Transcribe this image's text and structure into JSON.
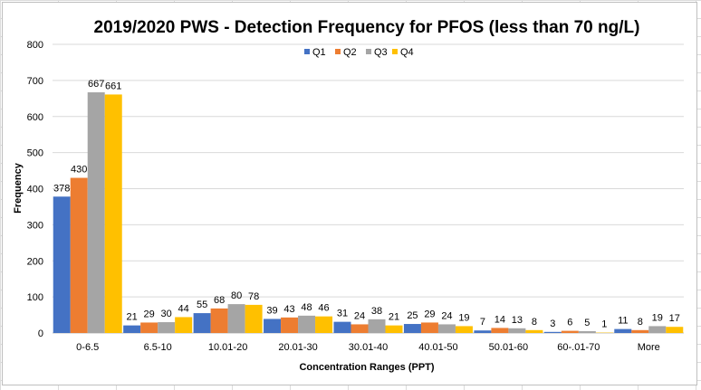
{
  "chart_data": {
    "type": "bar",
    "title": "2019/2020 PWS - Detection Frequency for PFOS (less than 70 ng/L)",
    "xlabel": "Concentration Ranges (PPT)",
    "ylabel": "Frequency",
    "ylim": [
      0,
      800
    ],
    "yticks": [
      0,
      100,
      200,
      300,
      400,
      500,
      600,
      700,
      800
    ],
    "grid": "horizontal",
    "legend_position": "top",
    "categories": [
      "0-6.5",
      "6.5-10",
      "10.01-20",
      "20.01-30",
      "30.01-40",
      "40.01-50",
      "50.01-60",
      "60-.01-70",
      "More"
    ],
    "series": [
      {
        "name": "Q1",
        "color": "#4472C4",
        "values": [
          378,
          21,
          55,
          39,
          31,
          25,
          7,
          3,
          11
        ]
      },
      {
        "name": "Q2",
        "color": "#ED7D31",
        "values": [
          430,
          29,
          68,
          43,
          24,
          29,
          14,
          6,
          8
        ]
      },
      {
        "name": "Q3",
        "color": "#A5A5A5",
        "values": [
          667,
          30,
          80,
          48,
          38,
          24,
          13,
          5,
          19
        ]
      },
      {
        "name": "Q4",
        "color": "#FFC000",
        "values": [
          661,
          44,
          78,
          46,
          21,
          19,
          8,
          1,
          17
        ]
      }
    ]
  }
}
